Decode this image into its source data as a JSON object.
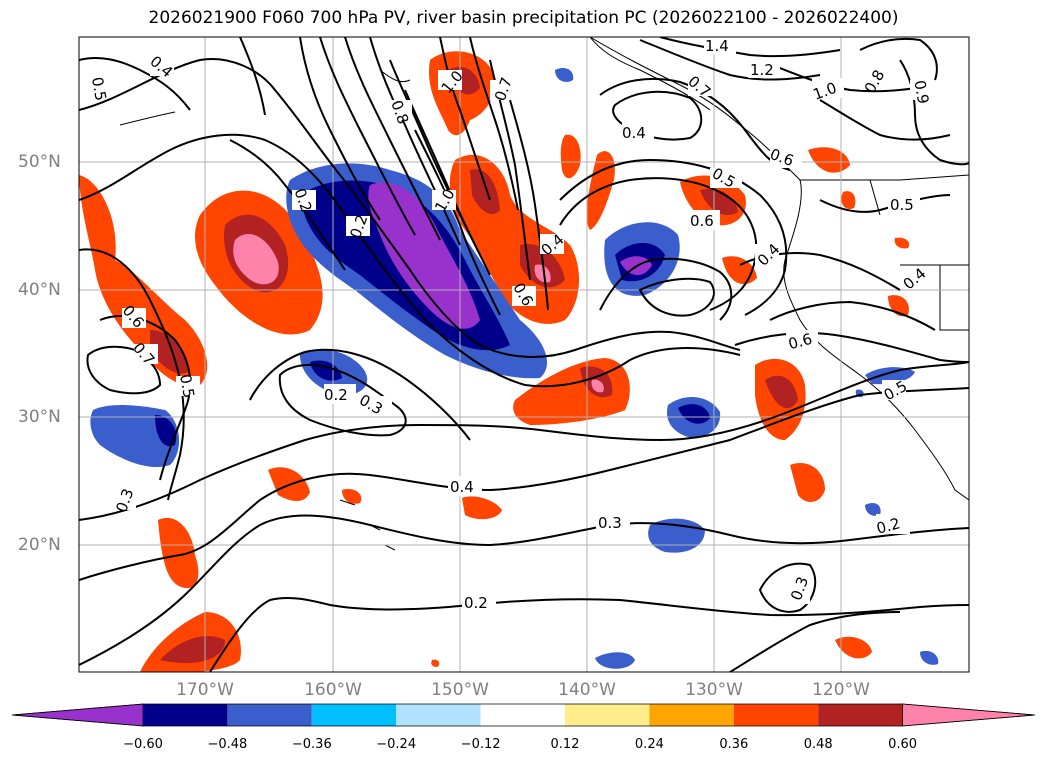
{
  "title": "2026021900 F060 700 hPa PV, river basin precipitation PC (2026022100 - 2026022400)",
  "lat_labels": [
    "50°N",
    "40°N",
    "30°N",
    "20°N"
  ],
  "lon_labels": [
    "170°W",
    "160°W",
    "150°W",
    "140°W",
    "130°W",
    "120°W"
  ],
  "colorbar": {
    "colors": [
      "#9932cc",
      "#00008b",
      "#3a5fcd",
      "#00bfff",
      "#b0e2ff",
      "#ffffff",
      "#ffec8b",
      "#ffa500",
      "#ff4500",
      "#b22222",
      "#ff82ab"
    ],
    "tick_labels": [
      "−0.60",
      "−0.48",
      "−0.36",
      "−0.24",
      "−0.12",
      "0.12",
      "0.24",
      "0.36",
      "0.48",
      "0.60"
    ]
  },
  "contour_labels": [
    "0.5",
    "0.4",
    "0.8",
    "1.0",
    "0.7",
    "1.4",
    "1.2",
    "1.0",
    "0.8",
    "0.9",
    "0.4",
    "0.7",
    "0.6",
    "0.5",
    "0.6",
    "0.5",
    "0.2",
    "0.2",
    "1.0",
    "0.4",
    "0.6",
    "0.4",
    "0.4",
    "0.6",
    "0.7",
    "0.5",
    "0.6",
    "0.2",
    "0.3",
    "0.5",
    "0.3",
    "0.4",
    "0.3",
    "0.2",
    "0.2",
    "0.3"
  ]
}
